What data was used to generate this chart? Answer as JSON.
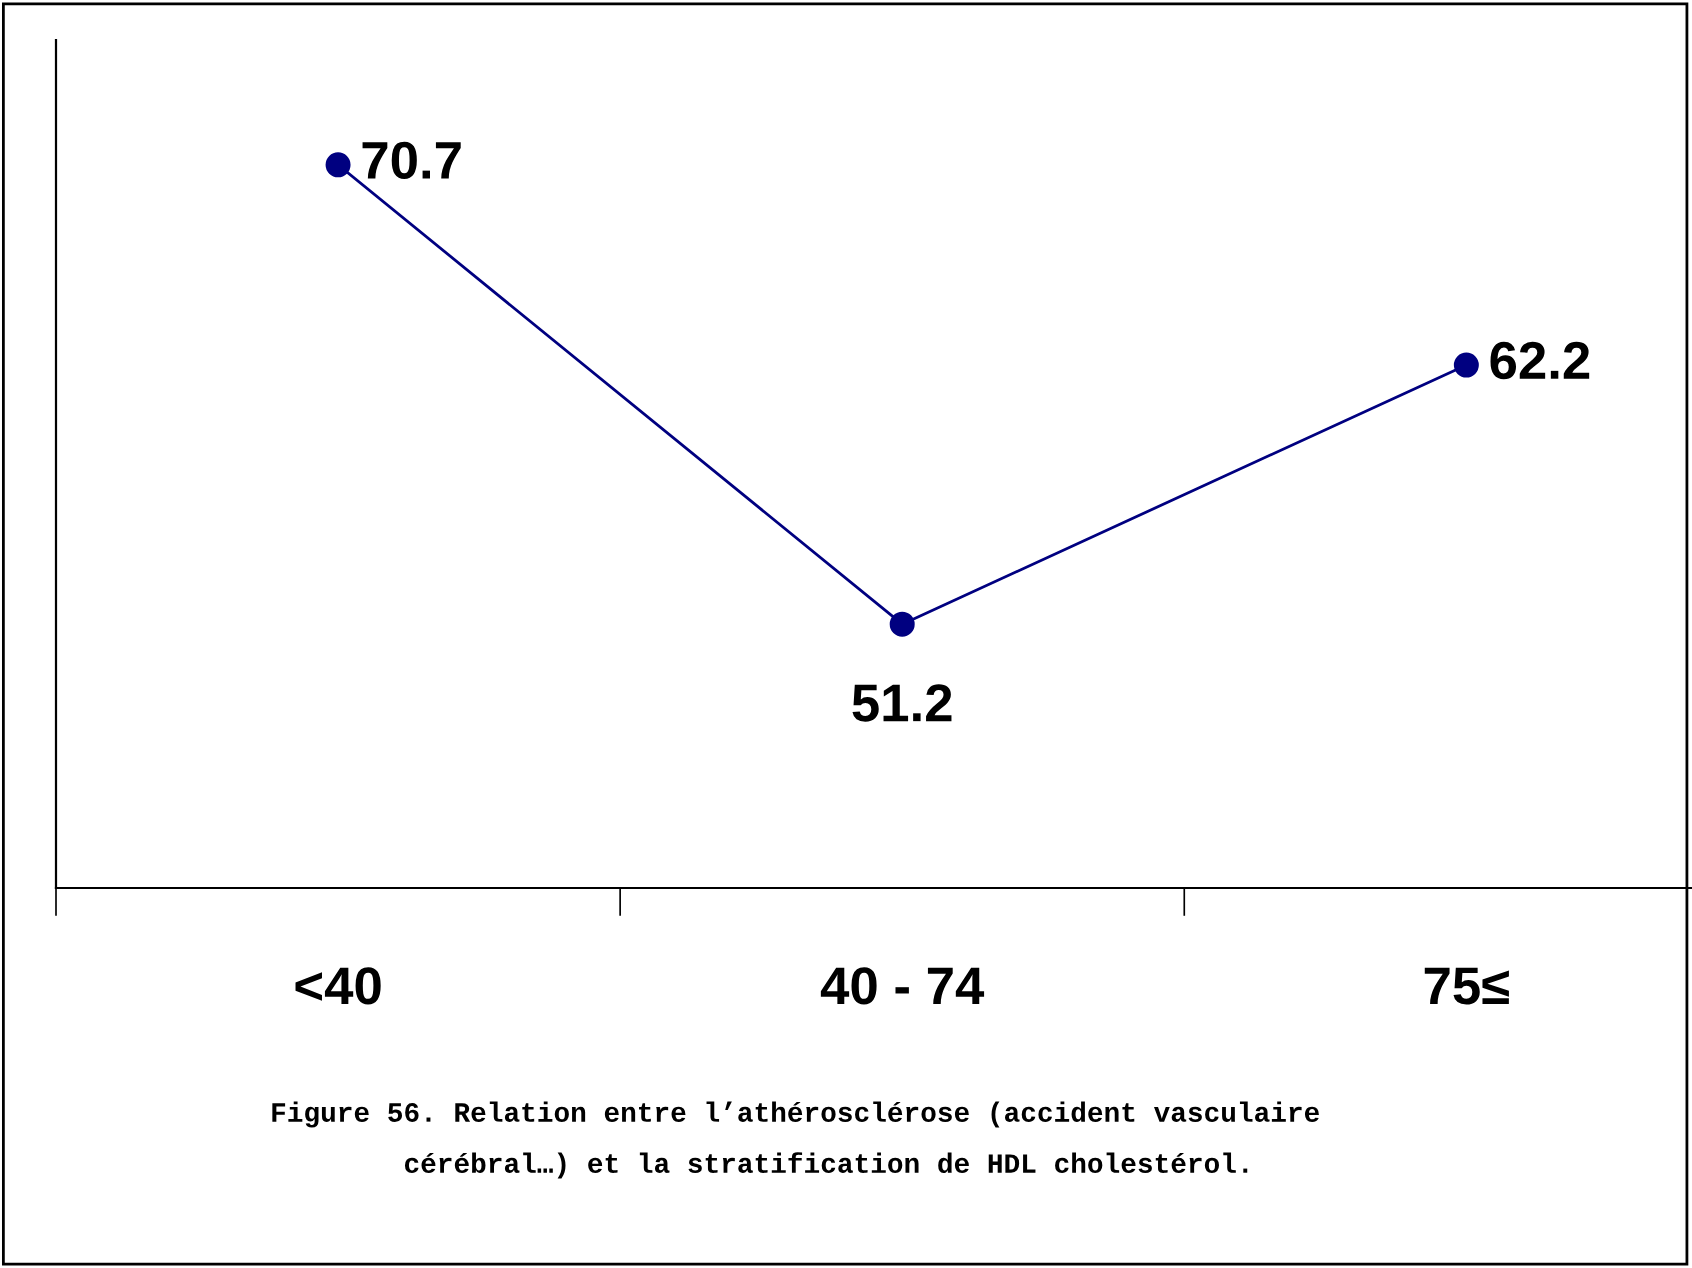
{
  "chart_data": {
    "type": "line",
    "categories": [
      "<40",
      "40 - 74",
      "75≤"
    ],
    "series": [
      {
        "color": "#000080",
        "values": [
          70.7,
          51.2,
          62.2
        ]
      }
    ],
    "ylim": [
      40,
      76
    ],
    "tick_labels": "x",
    "data_labels": true,
    "marker": "circle",
    "line_style": "solid",
    "grid": false,
    "legend": false,
    "annotations": [
      "Figure 56. Relation entre l’athérosclérose (accident vasculaire\n    cérébral…) et la stratification de HDL cholestérol."
    ]
  }
}
